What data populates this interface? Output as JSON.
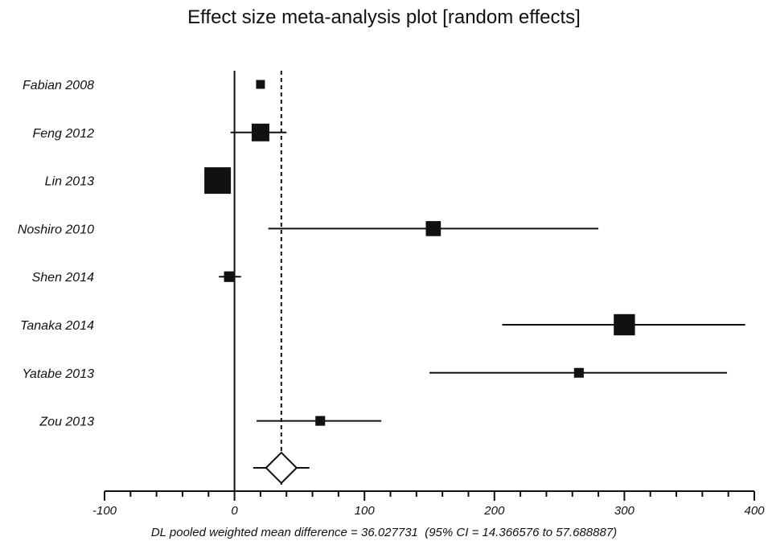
{
  "chart_data": {
    "type": "forest",
    "title": "Effect size meta-analysis plot [random effects]",
    "xlim": [
      -100,
      400
    ],
    "x_ticks": [
      -100,
      0,
      100,
      200,
      300,
      400
    ],
    "x_tick_labels": [
      "-100",
      "0",
      "100",
      "200",
      "300",
      "400"
    ],
    "reference_line": 0,
    "pooled_line": 36.027731,
    "studies": [
      {
        "name": "Fabian 2008",
        "estimate": 20,
        "ci_low": 18,
        "ci_high": 22,
        "weight": 1
      },
      {
        "name": "Feng 2012",
        "estimate": 20,
        "ci_low": -3,
        "ci_high": 40,
        "weight": 2
      },
      {
        "name": "Lin 2013",
        "estimate": -13,
        "ci_low": -15,
        "ci_high": -11,
        "weight": 3
      },
      {
        "name": "Noshiro 2010",
        "estimate": 153,
        "ci_low": 26,
        "ci_high": 280,
        "weight": 1.7
      },
      {
        "name": "Shen 2014",
        "estimate": -4,
        "ci_low": -12,
        "ci_high": 5,
        "weight": 1.2
      },
      {
        "name": "Tanaka 2014",
        "estimate": 300,
        "ci_low": 206,
        "ci_high": 393,
        "weight": 2.4
      },
      {
        "name": "Yatabe 2013",
        "estimate": 265,
        "ci_low": 150,
        "ci_high": 379,
        "weight": 1.1
      },
      {
        "name": "Zou 2013",
        "estimate": 66,
        "ci_low": 17,
        "ci_high": 113,
        "weight": 1.1
      }
    ],
    "pooled": {
      "estimate": 36.027731,
      "ci_low": 14.366576,
      "ci_high": 57.688887
    },
    "footnote": "DL pooled weighted mean difference = 36.027731  (95% CI = 14.366576 to 57.688887)",
    "grid": false
  }
}
